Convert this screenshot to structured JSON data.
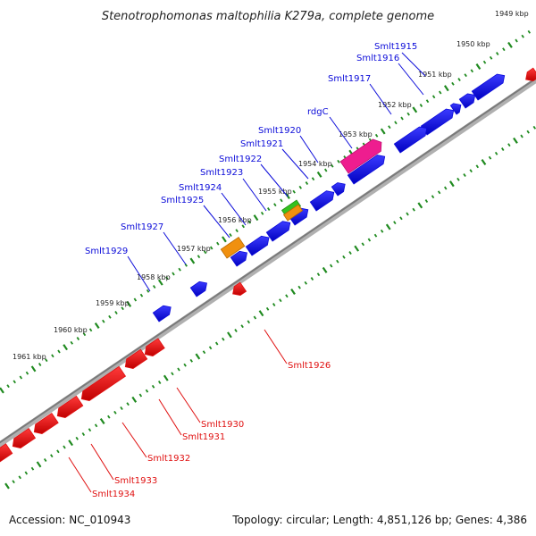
{
  "title": "Stenotrophomonas maltophilia K279a, complete genome",
  "footer": {
    "accession": "Accession: NC_010943",
    "summary": "Topology: circular; Length: 4,851,126 bp; Genes: 4,386"
  },
  "colors": {
    "forward": "#0b0bd9",
    "reverse": "#e01010",
    "backbone": "#909090",
    "tick": "#1f8a1f",
    "special_pink": "#ee1d8f",
    "special_orange": "#f0900f",
    "special_green": "#34c21f"
  },
  "scale_labels": [
    "1949 kbp",
    "1950 kbp",
    "1951 kbp",
    "1952 kbp",
    "1953 kbp",
    "1954 kbp",
    "1955 kbp",
    "1956 kbp",
    "1957 kbp",
    "1958 kbp",
    "1959 kbp",
    "1960 kbp",
    "1961 kbp"
  ],
  "forward_labels": [
    "Smlt1915",
    "Smlt1916",
    "Smlt1917",
    "rdgC",
    "Smlt1920",
    "Smlt1921",
    "Smlt1922",
    "Smlt1923",
    "Smlt1924",
    "Smlt1925",
    "Smlt1927",
    "Smlt1929"
  ],
  "reverse_labels": [
    "Smlt1926",
    "Smlt1930",
    "Smlt1931",
    "Smlt1932",
    "Smlt1933",
    "Smlt1934"
  ]
}
